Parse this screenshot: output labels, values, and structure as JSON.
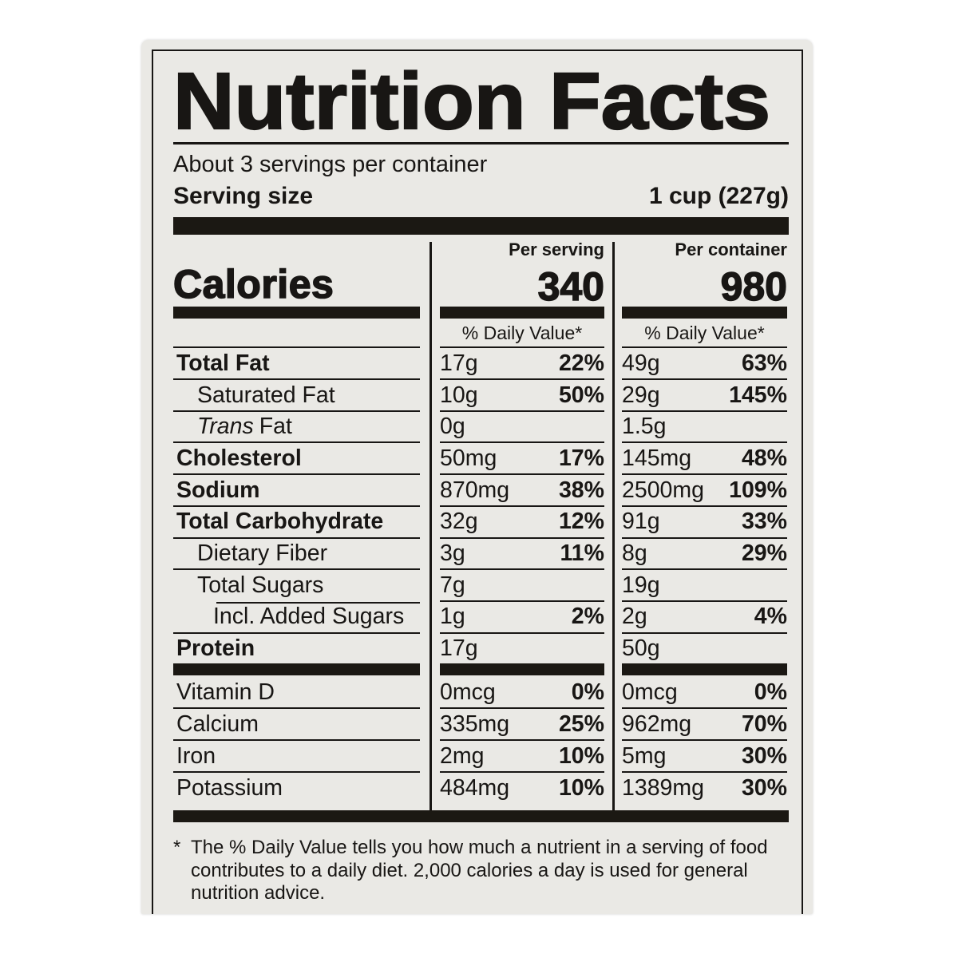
{
  "label": {
    "title": "Nutrition Facts",
    "servings_per_container": "About 3 servings per container",
    "serving_size_label": "Serving size",
    "serving_size_value": "1 cup (227g)",
    "calories_word": "Calories",
    "per_serving_header": "Per serving",
    "per_serving_calories": "340",
    "per_container_header": "Per container",
    "per_container_calories": "980",
    "daily_value_header_serving": "% Daily Value*",
    "daily_value_header_container": "% Daily Value*",
    "rows": [
      {
        "name": "Total Fat",
        "amount_serving": "17g",
        "dv_serving": "22%",
        "amount_container": "49g",
        "dv_container": "63%"
      },
      {
        "name": "Saturated Fat",
        "amount_serving": "10g",
        "dv_serving": "50%",
        "amount_container": "29g",
        "dv_container": "145%"
      },
      {
        "name_italic": "Trans",
        "name": "Fat",
        "amount_serving": "0g",
        "dv_serving": "",
        "amount_container": "1.5g",
        "dv_container": ""
      },
      {
        "name": "Cholesterol",
        "amount_serving": "50mg",
        "dv_serving": "17%",
        "amount_container": "145mg",
        "dv_container": "48%"
      },
      {
        "name": "Sodium",
        "amount_serving": "870mg",
        "dv_serving": "38%",
        "amount_container": "2500mg",
        "dv_container": "109%"
      },
      {
        "name": "Total Carbohydrate",
        "amount_serving": "32g",
        "dv_serving": "12%",
        "amount_container": "91g",
        "dv_container": "33%"
      },
      {
        "name": "Dietary Fiber",
        "amount_serving": "3g",
        "dv_serving": "11%",
        "amount_container": "8g",
        "dv_container": "29%"
      },
      {
        "name": "Total Sugars",
        "amount_serving": "7g",
        "dv_serving": "",
        "amount_container": "19g",
        "dv_container": ""
      },
      {
        "name": "Incl. Added Sugars",
        "amount_serving": "1g",
        "dv_serving": "2%",
        "amount_container": "2g",
        "dv_container": "4%"
      },
      {
        "name": "Protein",
        "amount_serving": "17g",
        "dv_serving": "",
        "amount_container": "50g",
        "dv_container": ""
      }
    ],
    "vitamins": [
      {
        "name": "Vitamin D",
        "amount_serving": "0mcg",
        "dv_serving": "0%",
        "amount_container": "0mcg",
        "dv_container": "0%"
      },
      {
        "name": "Calcium",
        "amount_serving": "335mg",
        "dv_serving": "25%",
        "amount_container": "962mg",
        "dv_container": "70%"
      },
      {
        "name": "Iron",
        "amount_serving": "2mg",
        "dv_serving": "10%",
        "amount_container": "5mg",
        "dv_container": "30%"
      },
      {
        "name": "Potassium",
        "amount_serving": "484mg",
        "dv_serving": "10%",
        "amount_container": "1389mg",
        "dv_container": "30%"
      }
    ],
    "footnote_marker": "*",
    "footnote_lines": {
      "l1": "The % Daily Value tells you how much a nutrient in a serving of food",
      "l2": "contributes to a daily diet. 2,000 calories a day is used for general",
      "l3": "nutrition advice."
    }
  }
}
